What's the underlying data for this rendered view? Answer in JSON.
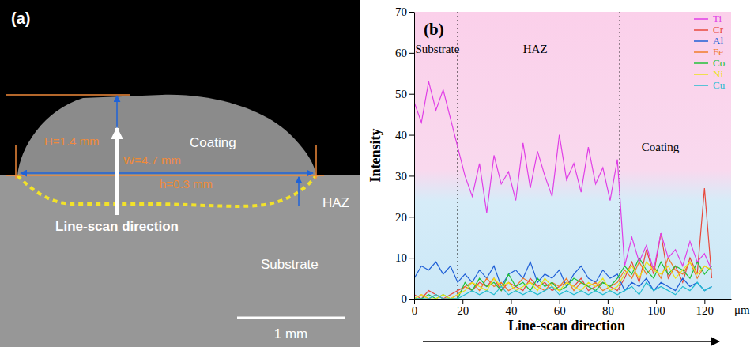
{
  "micrograph": {
    "panel_label": "(a)",
    "labels": {
      "coating": "Coating",
      "haz": "HAZ",
      "substrate": "Substrate",
      "scan": "Line-scan direction",
      "height": "H=1.4 mm",
      "width": "W=4.7 mm",
      "depth": "h=0.3 mm",
      "scale_bar": "1 mm"
    }
  },
  "chart_data": {
    "type": "line",
    "panel_label": "(b)",
    "x_label": "Line-scan direction",
    "x_unit": "μm",
    "y_label": "Intensity",
    "x": [
      0,
      3,
      6,
      9,
      12,
      15,
      18,
      21,
      24,
      27,
      30,
      33,
      36,
      39,
      42,
      45,
      48,
      51,
      54,
      57,
      60,
      63,
      66,
      69,
      72,
      75,
      78,
      81,
      84,
      87,
      90,
      93,
      96,
      99,
      102,
      105,
      108,
      111,
      114,
      117,
      120,
      123
    ],
    "series": [
      {
        "name": "Ti",
        "color": "#e03ee6",
        "values": [
          48,
          43,
          53,
          46,
          51,
          44,
          37,
          30,
          25,
          33,
          21,
          35,
          28,
          31,
          24,
          38,
          27,
          36,
          30,
          25,
          40,
          29,
          33,
          26,
          37,
          28,
          32,
          24,
          34,
          8,
          15,
          9,
          13,
          7,
          16,
          10,
          12,
          8,
          14,
          9,
          11,
          7
        ]
      },
      {
        "name": "Cr",
        "color": "#e8483c",
        "values": [
          1,
          0,
          2,
          1,
          0,
          1,
          2,
          3,
          2,
          4,
          3,
          5,
          2,
          4,
          3,
          2,
          5,
          3,
          4,
          2,
          3,
          4,
          3,
          5,
          2,
          3,
          4,
          3,
          2,
          5,
          9,
          4,
          12,
          6,
          16,
          5,
          8,
          4,
          10,
          6,
          27,
          5
        ]
      },
      {
        "name": "Al",
        "color": "#1f5fd6",
        "values": [
          5,
          8,
          7,
          9,
          6,
          8,
          4,
          6,
          4,
          7,
          5,
          8,
          3,
          6,
          7,
          5,
          9,
          4,
          6,
          5,
          7,
          3,
          6,
          8,
          5,
          4,
          7,
          5,
          6,
          2,
          4,
          3,
          5,
          2,
          4,
          3,
          2,
          5,
          3,
          4,
          2,
          3
        ]
      },
      {
        "name": "Fe",
        "color": "#f07c28",
        "values": [
          0,
          1,
          0,
          1,
          0,
          0,
          1,
          3,
          4,
          2,
          5,
          3,
          4,
          2,
          3,
          5,
          4,
          3,
          2,
          4,
          3,
          5,
          2,
          4,
          3,
          4,
          2,
          3,
          4,
          7,
          5,
          9,
          6,
          8,
          5,
          10,
          7,
          6,
          9,
          5,
          8,
          7
        ]
      },
      {
        "name": "Co",
        "color": "#22c23a",
        "values": [
          0,
          0,
          1,
          0,
          1,
          0,
          0,
          4,
          2,
          5,
          3,
          4,
          2,
          6,
          3,
          4,
          2,
          5,
          3,
          4,
          2,
          3,
          5,
          4,
          3,
          2,
          4,
          3,
          5,
          8,
          6,
          10,
          7,
          5,
          9,
          6,
          8,
          7,
          5,
          9,
          6,
          8
        ]
      },
      {
        "name": "Ni",
        "color": "#ece21a",
        "values": [
          0,
          1,
          0,
          0,
          1,
          0,
          1,
          2,
          4,
          3,
          2,
          5,
          3,
          4,
          2,
          3,
          4,
          2,
          5,
          3,
          2,
          4,
          3,
          2,
          4,
          3,
          5,
          2,
          3,
          6,
          8,
          5,
          9,
          7,
          6,
          8,
          5,
          7,
          9,
          6,
          8,
          7
        ]
      },
      {
        "name": "Cu",
        "color": "#22bcd0",
        "values": [
          0,
          0,
          0,
          1,
          0,
          0,
          0,
          1,
          2,
          1,
          2,
          1,
          3,
          1,
          2,
          1,
          2,
          1,
          2,
          3,
          1,
          2,
          1,
          2,
          1,
          2,
          1,
          2,
          1,
          2,
          3,
          1,
          4,
          2,
          3,
          2,
          1,
          3,
          2,
          4,
          2,
          3
        ]
      }
    ],
    "boundaries": [
      18,
      85
    ],
    "annotations": [
      {
        "text": "Substrate",
        "x": 0.5,
        "y": 60
      },
      {
        "text": "HAZ",
        "x": 45,
        "y": 60
      },
      {
        "text": "Coating",
        "x": 94,
        "y": 36
      }
    ],
    "xlim": [
      0,
      131
    ],
    "xticks": [
      0,
      20,
      40,
      60,
      80,
      100,
      120
    ],
    "ylim": [
      0,
      70
    ],
    "yticks": [
      0,
      10,
      20,
      30,
      40,
      50,
      60,
      70
    ],
    "grid": false,
    "legend": "upper right"
  }
}
